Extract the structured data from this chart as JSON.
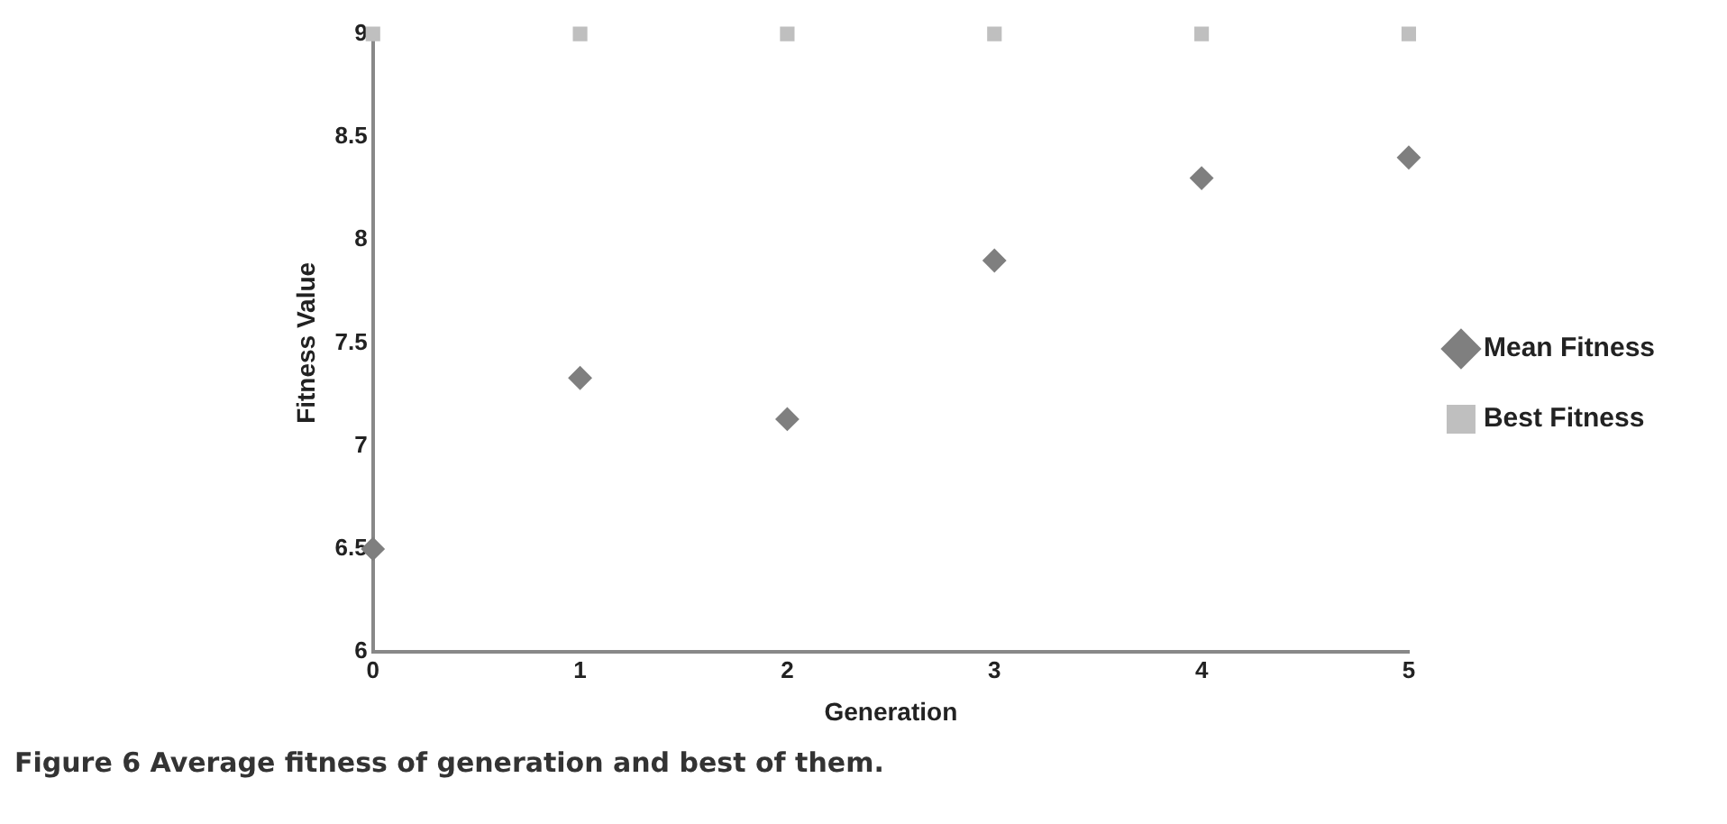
{
  "chart_data": {
    "type": "scatter",
    "xlabel": "Generation",
    "ylabel": "Fitness Value",
    "x": [
      0,
      1,
      2,
      3,
      4,
      5
    ],
    "series": [
      {
        "name": "Mean Fitness",
        "color": "#7f7f7f",
        "marker": "diamond",
        "values": [
          6.5,
          7.33,
          7.13,
          7.9,
          8.3,
          8.4
        ]
      },
      {
        "name": "Best Fitness",
        "color": "#bfbfbf",
        "marker": "square",
        "values": [
          9,
          9,
          9,
          9,
          9,
          9
        ]
      }
    ],
    "xlim": [
      0,
      5
    ],
    "xticks": [
      0,
      1,
      2,
      3,
      4,
      5
    ],
    "ylim": [
      6,
      9
    ],
    "yticks": [
      6,
      6.5,
      7,
      7.5,
      8,
      8.5,
      9
    ],
    "grid": false,
    "legend": "right",
    "annotations": [
      "Figure 6 Average fitness of generation and best of them."
    ]
  }
}
